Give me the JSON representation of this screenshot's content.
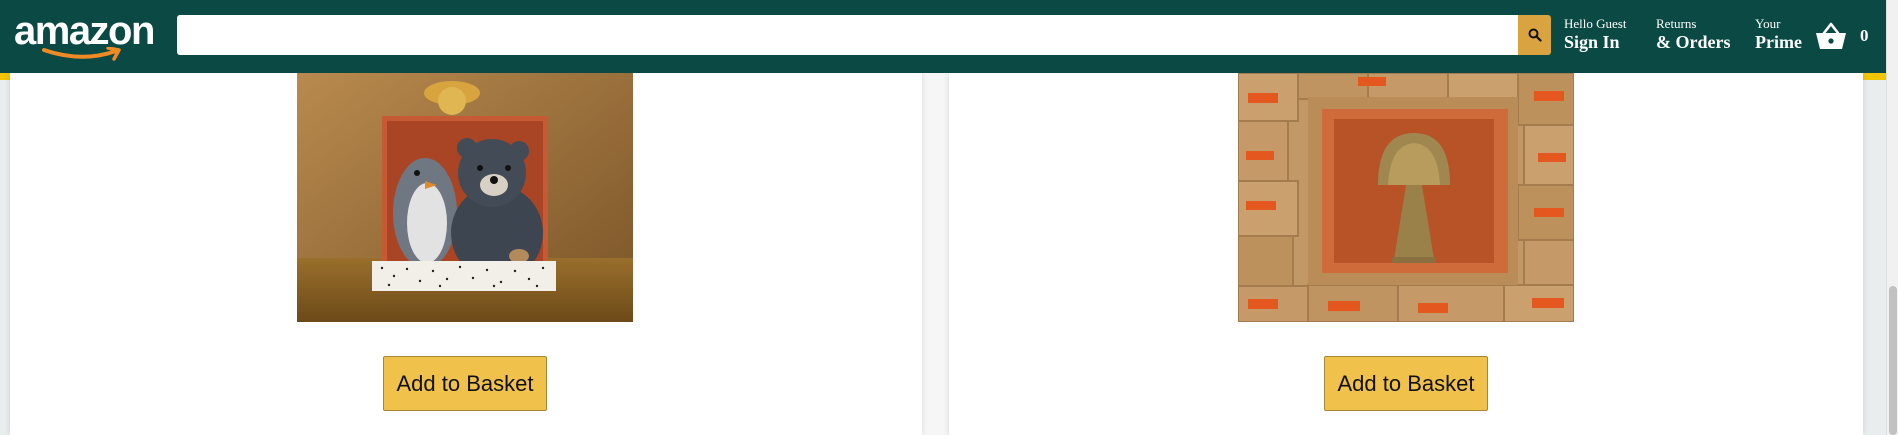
{
  "header": {
    "logo_text": "amazon",
    "search": {
      "placeholder": "",
      "value": ""
    },
    "account": {
      "greeting": "Hello Guest",
      "action": "Sign In"
    },
    "orders": {
      "line1": "Returns",
      "line2": "& Orders"
    },
    "prime": {
      "line1": "Your",
      "line2": "Prime"
    },
    "cart": {
      "count": "0"
    }
  },
  "products": [
    {
      "button_label": "Add to Basket"
    },
    {
      "button_label": "Add to Basket"
    }
  ],
  "icons": {
    "logo_arrow": "smile-arrow-icon",
    "search": "search-icon",
    "cart": "basket-icon"
  },
  "colors": {
    "header_bg": "#0b4a44",
    "search_button": "#d9a340",
    "accent_strip": "#f0c500",
    "add_button": "#f0c14b",
    "add_button_border": "#a88734"
  }
}
